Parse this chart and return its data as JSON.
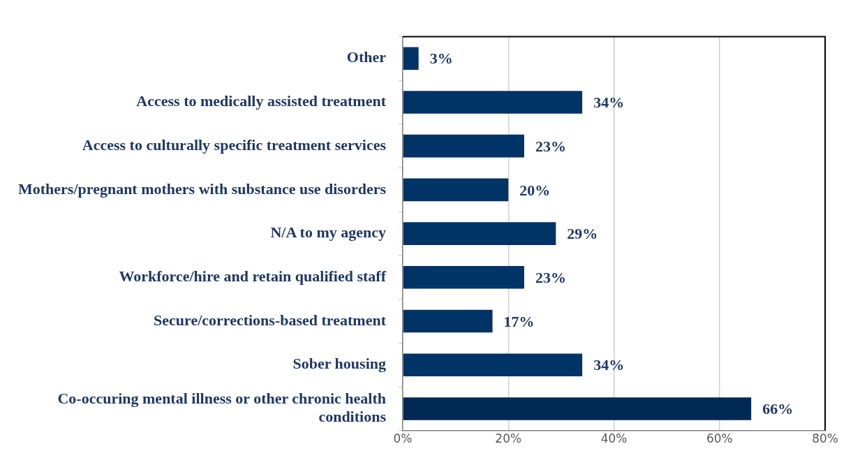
{
  "chart_data": {
    "type": "bar",
    "orientation": "horizontal",
    "categories": [
      "Other",
      "Access to medically assisted treatment",
      "Access to culturally specific treatment services",
      "Mothers/pregnant mothers with substance use disorders",
      "N/A to my agency",
      "Workforce/hire and retain qualified staff",
      "Secure/corrections-based treatment",
      "Sober housing",
      "Co-occuring mental illness or other chronic health conditions"
    ],
    "values": [
      3,
      34,
      23,
      20,
      29,
      23,
      17,
      34,
      66
    ],
    "colors": [
      "#003366",
      "#003366",
      "#003366",
      "#003366",
      "#003366",
      "#003366",
      "#003366",
      "#003366",
      "#002855"
    ],
    "value_labels": [
      "3%",
      "34%",
      "23%",
      "20%",
      "29%",
      "23%",
      "17%",
      "34%",
      "66%"
    ],
    "xlim": [
      0,
      80
    ],
    "xticks": [
      {
        "value": 0,
        "label": "0%"
      },
      {
        "value": 20,
        "label": "20%"
      },
      {
        "value": 40,
        "label": "40%"
      },
      {
        "value": 60,
        "label": "60%"
      },
      {
        "value": 80,
        "label": "80%"
      }
    ],
    "grid": "x",
    "legend": false
  }
}
